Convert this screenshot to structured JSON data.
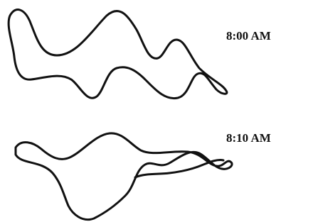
{
  "labels": [
    "8:00 AM",
    "8:10 AM"
  ]
}
